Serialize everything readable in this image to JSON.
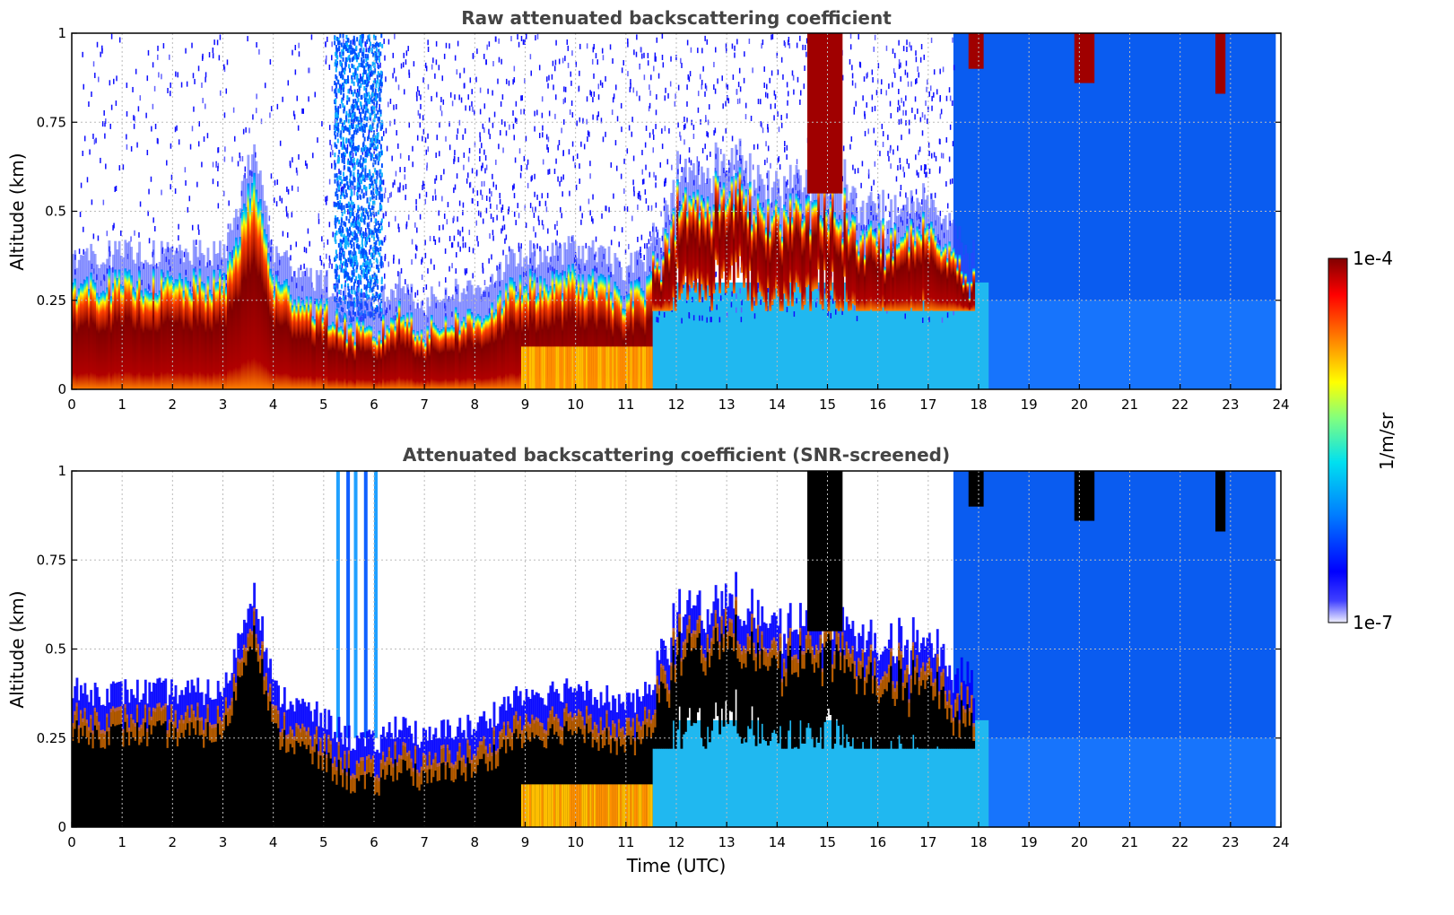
{
  "colors": {
    "jet": [
      "#f0f0ff",
      "#0000ff",
      "#0080ff",
      "#00e0f0",
      "#80ff80",
      "#ffff00",
      "#ff8000",
      "#ff0000",
      "#800000"
    ],
    "saturated_screened": "#000000",
    "grid": "#bbbbbb"
  },
  "colorbar": {
    "max_label": "1e-4",
    "min_label": "1e-7",
    "unit_label": "1/m/sr",
    "scale": "log",
    "range": [
      1e-07,
      0.0001
    ]
  },
  "chart_data": [
    {
      "type": "heatmap",
      "title": "Raw attenuated backscattering coefficient",
      "xlabel": "",
      "ylabel": "Altitude (km)",
      "xlim": [
        0,
        24
      ],
      "ylim": [
        0,
        1
      ],
      "xticks": [
        "0",
        "1",
        "2",
        "3",
        "4",
        "5",
        "6",
        "7",
        "8",
        "9",
        "10",
        "11",
        "12",
        "13",
        "14",
        "15",
        "16",
        "17",
        "18",
        "19",
        "20",
        "21",
        "22",
        "23",
        "24"
      ],
      "yticks": [
        "0",
        "0.25",
        "0.5",
        "0.75",
        "1"
      ],
      "grid": true,
      "layer_top_km": [
        [
          0,
          0.3
        ],
        [
          1,
          0.3
        ],
        [
          1.5,
          0.3
        ],
        [
          2,
          0.3
        ],
        [
          3,
          0.3
        ],
        [
          3.6,
          0.6
        ],
        [
          4,
          0.3
        ],
        [
          5,
          0.22
        ],
        [
          5.5,
          0.17
        ],
        [
          6,
          0.15
        ],
        [
          6.5,
          0.22
        ],
        [
          7,
          0.16
        ],
        [
          7.5,
          0.2
        ],
        [
          8,
          0.2
        ],
        [
          8.9,
          0.3
        ],
        [
          9.5,
          0.3
        ],
        [
          10,
          0.32
        ],
        [
          11,
          0.26
        ],
        [
          11.5,
          0.3
        ],
        [
          12,
          0.5
        ],
        [
          12.5,
          0.5
        ],
        [
          13,
          0.55
        ],
        [
          13.5,
          0.5
        ],
        [
          14,
          0.45
        ],
        [
          14.5,
          0.5
        ],
        [
          15,
          0.5
        ],
        [
          15.5,
          0.45
        ],
        [
          16,
          0.4
        ],
        [
          17,
          0.42
        ],
        [
          17.8,
          0.3
        ]
      ],
      "elevated_layers": [
        {
          "x_start": 14.6,
          "x_end": 15.3,
          "bottom_km": 0.55,
          "top_km": 1.0
        },
        {
          "x_start": 17.8,
          "x_end": 18.1,
          "bottom_km": 0.9,
          "top_km": 1.0
        },
        {
          "x_start": 19.9,
          "x_end": 20.3,
          "bottom_km": 0.86,
          "top_km": 1.0
        },
        {
          "x_start": 22.7,
          "x_end": 22.9,
          "bottom_km": 0.83,
          "top_km": 1.0
        }
      ]
    },
    {
      "type": "heatmap",
      "title": "Attenuated backscattering coefficient (SNR-screened)",
      "xlabel": "Time (UTC)",
      "ylabel": "Altitude (km)",
      "xlim": [
        0,
        24
      ],
      "ylim": [
        0,
        1
      ],
      "xticks": [
        "0",
        "1",
        "2",
        "3",
        "4",
        "5",
        "6",
        "7",
        "8",
        "9",
        "10",
        "11",
        "12",
        "13",
        "14",
        "15",
        "16",
        "17",
        "18",
        "19",
        "20",
        "21",
        "22",
        "23",
        "24"
      ],
      "yticks": [
        "0",
        "0.25",
        "0.5",
        "0.75",
        "1"
      ],
      "grid": true,
      "saturated_color": "black"
    }
  ]
}
